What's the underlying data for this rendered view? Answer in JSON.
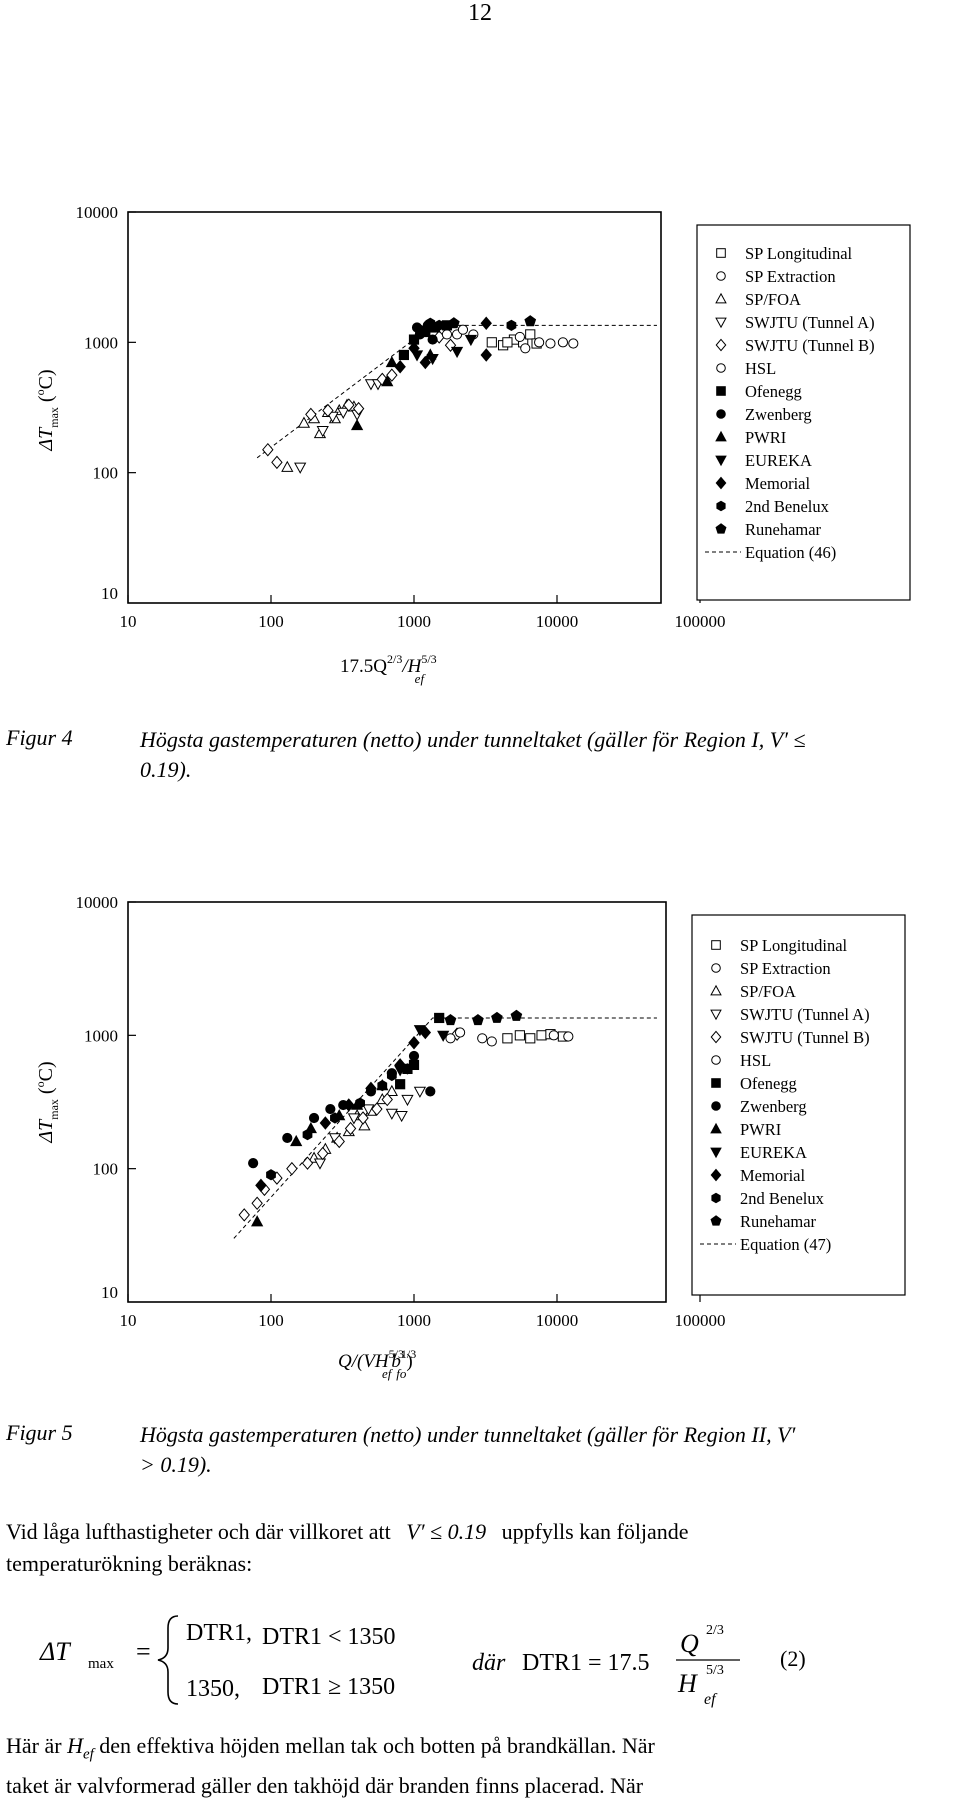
{
  "page_number": "12",
  "legend_entries": [
    {
      "label": "SP Longitudinal",
      "marker": "square-open"
    },
    {
      "label": "SP Extraction",
      "marker": "circle-open"
    },
    {
      "label": "SP/FOA",
      "marker": "triangle-up-open"
    },
    {
      "label": "SWJTU (Tunnel A)",
      "marker": "triangle-down-open"
    },
    {
      "label": "SWJTU (Tunnel B)",
      "marker": "diamond-open"
    },
    {
      "label": "HSL",
      "marker": "circle-open"
    },
    {
      "label": "Ofenegg",
      "marker": "square-filled"
    },
    {
      "label": "Zwenberg",
      "marker": "circle-filled"
    },
    {
      "label": "PWRI",
      "marker": "triangle-up-filled"
    },
    {
      "label": "EUREKA",
      "marker": "triangle-down-filled"
    },
    {
      "label": "Memorial",
      "marker": "diamond-filled"
    },
    {
      "label": "2nd Benelux",
      "marker": "hexagon-filled"
    },
    {
      "label": "Runehamar",
      "marker": "pentagon-filled"
    }
  ],
  "chart_data": [
    {
      "type": "scatter",
      "x_scale": "log",
      "y_scale": "log",
      "xlim": [
        10,
        100000
      ],
      "ylim": [
        10,
        10000
      ],
      "x_ticks": [
        "10",
        "100",
        "1000",
        "10000",
        "100000"
      ],
      "y_ticks": [
        "10",
        "100",
        "1000",
        "10000"
      ],
      "xlabel_parts": {
        "base": "17.5Q",
        "exp1": "2/3",
        "mid": "/H",
        "exp2": "5/3",
        "sub": "ef"
      },
      "ylabel_parts": {
        "delta": "ΔT",
        "sub": "max",
        "unit_open": " (",
        "deg": "o",
        "unit_close": "C)"
      },
      "equation_label": "Equation (46)",
      "equation_line": [
        [
          80,
          130
        ],
        [
          1350,
          1350
        ],
        [
          50000,
          1350
        ]
      ],
      "series": [
        {
          "marker": "square-open",
          "points": [
            [
              3500,
              1000
            ],
            [
              4200,
              950
            ],
            [
              5000,
              1050
            ],
            [
              5800,
              1000
            ],
            [
              6500,
              1150
            ],
            [
              7200,
              980
            ],
            [
              4500,
              1000
            ]
          ]
        },
        {
          "marker": "circle-open",
          "points": [
            [
              6000,
              900
            ],
            [
              7500,
              1000
            ],
            [
              9000,
              980
            ],
            [
              11000,
              1000
            ],
            [
              13000,
              980
            ],
            [
              5500,
              1100
            ],
            [
              2000,
              1150
            ]
          ]
        },
        {
          "marker": "triangle-up-open",
          "points": [
            [
              170,
              240
            ],
            [
              200,
              260
            ],
            [
              220,
              200
            ],
            [
              250,
              290
            ],
            [
              300,
              300
            ],
            [
              280,
              260
            ],
            [
              130,
              110
            ],
            [
              340,
              330
            ],
            [
              380,
              320
            ]
          ]
        },
        {
          "marker": "triangle-down-open",
          "points": [
            [
              160,
              110
            ],
            [
              230,
              210
            ],
            [
              270,
              270
            ],
            [
              320,
              290
            ],
            [
              400,
              280
            ],
            [
              500,
              480
            ],
            [
              560,
              480
            ]
          ]
        },
        {
          "marker": "diamond-open",
          "points": [
            [
              95,
              150
            ],
            [
              110,
              120
            ],
            [
              190,
              280
            ],
            [
              250,
              300
            ],
            [
              350,
              330
            ],
            [
              410,
              310
            ],
            [
              600,
              520
            ],
            [
              700,
              560
            ],
            [
              1500,
              1100
            ],
            [
              1800,
              950
            ]
          ]
        },
        {
          "marker": "circle-open",
          "points": [
            [
              1700,
              1150
            ],
            [
              2200,
              1250
            ],
            [
              2600,
              1150
            ]
          ]
        },
        {
          "marker": "square-filled",
          "points": [
            [
              850,
              800
            ],
            [
              1000,
              1050
            ],
            [
              1200,
              1200
            ],
            [
              1400,
              1300
            ],
            [
              1700,
              1350
            ]
          ]
        },
        {
          "marker": "circle-filled",
          "points": [
            [
              1050,
              1300
            ],
            [
              1150,
              1200
            ],
            [
              1350,
              1050
            ],
            [
              1100,
              1150
            ],
            [
              1250,
              1350
            ]
          ]
        },
        {
          "marker": "triangle-up-filled",
          "points": [
            [
              700,
              700
            ],
            [
              400,
              230
            ],
            [
              650,
              500
            ],
            [
              1300,
              800
            ]
          ]
        },
        {
          "marker": "triangle-down-filled",
          "points": [
            [
              1050,
              800
            ],
            [
              1350,
              750
            ],
            [
              2000,
              850
            ],
            [
              2500,
              1050
            ]
          ]
        },
        {
          "marker": "diamond-filled",
          "points": [
            [
              800,
              650
            ],
            [
              1000,
              900
            ],
            [
              1200,
              700
            ],
            [
              3200,
              1400
            ],
            [
              3200,
              800
            ]
          ]
        },
        {
          "marker": "hexagon-filled",
          "points": [
            [
              1100,
              1250
            ],
            [
              1300,
              1400
            ],
            [
              1500,
              1350
            ],
            [
              4800,
              1350
            ]
          ]
        },
        {
          "marker": "pentagon-filled",
          "points": [
            [
              1900,
              1400
            ],
            [
              6500,
              1450
            ]
          ]
        }
      ]
    },
    {
      "type": "scatter",
      "x_scale": "log",
      "y_scale": "log",
      "xlim": [
        10,
        100000
      ],
      "ylim": [
        10,
        10000
      ],
      "x_ticks": [
        "10",
        "100",
        "1000",
        "10000",
        "100000"
      ],
      "y_ticks": [
        "10",
        "100",
        "1000",
        "10000"
      ],
      "xlabel_parts": {
        "base": "Q/(VH",
        "exp1": "5/3",
        "mid": "b",
        "exp2": "1/3",
        "sub1": "ef",
        "sub2": "fo",
        "close": ")"
      },
      "ylabel_parts": {
        "delta": "ΔT",
        "sub": "max",
        "unit_open": " (",
        "deg": "o",
        "unit_close": "C)"
      },
      "equation_label": "Equation (47)",
      "equation_line": [
        [
          55,
          30
        ],
        [
          1350,
          1350
        ],
        [
          50000,
          1350
        ]
      ],
      "series": [
        {
          "marker": "square-open",
          "points": [
            [
              6500,
              950
            ],
            [
              7800,
              1000
            ],
            [
              9000,
              1020
            ],
            [
              11000,
              980
            ],
            [
              4500,
              950
            ],
            [
              5500,
              1000
            ]
          ]
        },
        {
          "marker": "circle-open",
          "points": [
            [
              3000,
              950
            ],
            [
              3500,
              900
            ],
            [
              9500,
              1000
            ],
            [
              12000,
              980
            ]
          ]
        },
        {
          "marker": "triangle-up-open",
          "points": [
            [
              200,
              120
            ],
            [
              240,
              140
            ],
            [
              290,
              170
            ],
            [
              350,
              190
            ],
            [
              400,
              250
            ],
            [
              500,
              270
            ],
            [
              600,
              330
            ],
            [
              700,
              380
            ],
            [
              450,
              210
            ]
          ]
        },
        {
          "marker": "triangle-down-open",
          "points": [
            [
              220,
              110
            ],
            [
              380,
              240
            ],
            [
              480,
              280
            ],
            [
              700,
              260
            ],
            [
              820,
              250
            ],
            [
              1100,
              380
            ],
            [
              900,
              330
            ],
            [
              280,
              170
            ]
          ]
        },
        {
          "marker": "diamond-open",
          "points": [
            [
              65,
              45
            ],
            [
              80,
              55
            ],
            [
              90,
              70
            ],
            [
              110,
              85
            ],
            [
              140,
              100
            ],
            [
              180,
              110
            ],
            [
              230,
              130
            ],
            [
              300,
              160
            ],
            [
              360,
              200
            ],
            [
              440,
              240
            ],
            [
              550,
              280
            ],
            [
              650,
              330
            ],
            [
              2000,
              1020
            ]
          ]
        },
        {
          "marker": "circle-open",
          "points": [
            [
              1800,
              950
            ],
            [
              2100,
              1050
            ]
          ]
        },
        {
          "marker": "square-filled",
          "points": [
            [
              800,
              430
            ],
            [
              900,
              560
            ],
            [
              1500,
              1350
            ],
            [
              1000,
              600
            ]
          ]
        },
        {
          "marker": "circle-filled",
          "points": [
            [
              75,
              110
            ],
            [
              130,
              170
            ],
            [
              200,
              240
            ],
            [
              260,
              280
            ],
            [
              320,
              300
            ],
            [
              500,
              380
            ],
            [
              700,
              520
            ],
            [
              1300,
              380
            ],
            [
              1000,
              700
            ]
          ]
        },
        {
          "marker": "triangle-up-filled",
          "points": [
            [
              80,
              40
            ],
            [
              150,
              160
            ],
            [
              190,
              200
            ],
            [
              300,
              250
            ],
            [
              400,
              300
            ],
            [
              600,
              420
            ]
          ]
        },
        {
          "marker": "triangle-down-filled",
          "points": [
            [
              1100,
              1100
            ],
            [
              1600,
              1000
            ],
            [
              800,
              550
            ]
          ]
        },
        {
          "marker": "diamond-filled",
          "points": [
            [
              85,
              75
            ],
            [
              240,
              220
            ],
            [
              350,
              300
            ],
            [
              500,
              400
            ],
            [
              800,
              600
            ],
            [
              1200,
              1050
            ],
            [
              1000,
              880
            ]
          ]
        },
        {
          "marker": "hexagon-filled",
          "points": [
            [
              100,
              90
            ],
            [
              180,
              180
            ],
            [
              280,
              240
            ],
            [
              420,
              310
            ],
            [
              600,
              420
            ],
            [
              700,
              500
            ],
            [
              900,
              560
            ]
          ]
        },
        {
          "marker": "pentagon-filled",
          "points": [
            [
              1800,
              1300
            ],
            [
              2800,
              1300
            ],
            [
              3800,
              1350
            ],
            [
              5200,
              1400
            ]
          ]
        }
      ]
    }
  ],
  "figure4": {
    "label": "Figur 4",
    "caption_line1": "Högsta gastemperaturen (netto) under tunneltaket (gäller för Region I, V′ ≤",
    "caption_line2": "0.19)."
  },
  "figure5": {
    "label": "Figur 5",
    "caption_line1": "Högsta gastemperaturen (netto) under tunneltaket (gäller för Region II, V′",
    "caption_line2": "> 0.19)."
  },
  "paragraph1": {
    "line1_a": "Vid låga lufthastigheter och där villkoret att",
    "line1_cond": "V′ ≤ 0.19",
    "line1_b": "uppfylls kan följande",
    "line2": "temperaturökning beräknas:"
  },
  "equation": {
    "lhs_delta": "ΔT",
    "lhs_sub": "max",
    "equals": "=",
    "case1_val": "DTR1,",
    "case1_cond": "DTR1 < 1350",
    "case2_val": "1350,",
    "case2_cond": "DTR1 ≥ 1350",
    "dar": "där",
    "def_lhs": "DTR1 = 17.5",
    "num": "Q",
    "num_exp": "2/3",
    "den": "H",
    "den_exp": "5/3",
    "den_sub": "ef",
    "number": "(2)"
  },
  "paragraph2": {
    "line1_a": "Här är",
    "line1_sym": "H",
    "line1_sub": "ef",
    "line1_b": " den effektiva höjden mellan tak och botten på brandkällan. När",
    "line2": "taket är valvformerad gäller den takhöjd där branden finns placerad. När"
  }
}
